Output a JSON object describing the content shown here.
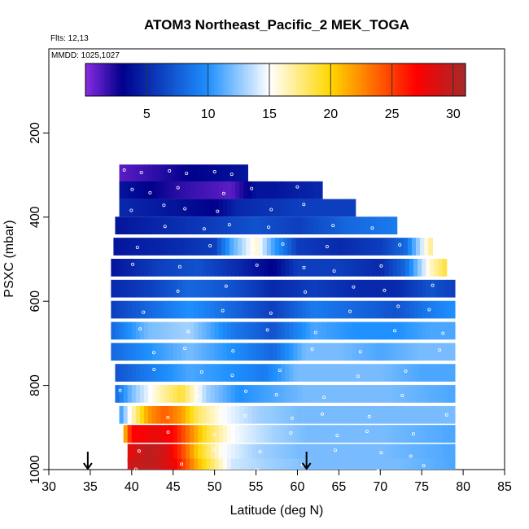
{
  "chart_data": {
    "type": "heatmap",
    "title": "ATOM3 Northeast_Pacific_2 MEK_TOGA",
    "flights_label": "Flts: 12,13",
    "dates_label": "MMDD: 1025,1027",
    "xlabel": "Latitude (deg N)",
    "ylabel": "PSXC (mbar)",
    "xlim": [
      30,
      85
    ],
    "ylim": [
      1000,
      0
    ],
    "x_ticks": [
      30,
      35,
      40,
      45,
      50,
      55,
      60,
      65,
      70,
      75,
      80,
      85
    ],
    "y_ticks": [
      200,
      400,
      600,
      800,
      1000
    ],
    "colorbar": {
      "range": [
        0,
        31
      ],
      "ticks": [
        5,
        10,
        15,
        20,
        25,
        30
      ],
      "colors": [
        "#8a2be2",
        "#00008b",
        "#1e90ff",
        "#ffffff",
        "#ffd700",
        "#ff0000",
        "#a52a2a"
      ]
    },
    "markers_latitude": [
      34.7,
      61.1
    ],
    "rows": [
      {
        "p": 296,
        "lat": [
          38.5,
          54
        ],
        "vals": [
          [
            38.5,
            1
          ],
          [
            47,
            3
          ],
          [
            54,
            4
          ]
        ]
      },
      {
        "p": 336,
        "lat": [
          38.5,
          63
        ],
        "vals": [
          [
            38.5,
            4
          ],
          [
            46,
            2
          ],
          [
            52,
            1
          ],
          [
            55,
            4
          ],
          [
            57,
            4
          ],
          [
            63,
            5
          ]
        ]
      },
      {
        "p": 378,
        "lat": [
          38.5,
          67
        ],
        "vals": [
          [
            38.5,
            5
          ],
          [
            45,
            4
          ],
          [
            50,
            3
          ],
          [
            53,
            5
          ],
          [
            60,
            6
          ],
          [
            67,
            6
          ]
        ]
      },
      {
        "p": 420,
        "lat": [
          38.0,
          72
        ],
        "vals": [
          [
            38,
            4
          ],
          [
            44,
            5
          ],
          [
            50,
            6
          ],
          [
            55,
            7
          ],
          [
            60,
            6
          ],
          [
            66,
            8
          ],
          [
            72,
            9
          ]
        ]
      },
      {
        "p": 470,
        "lat": [
          37.8,
          76
        ],
        "vals": [
          [
            37.8,
            4
          ],
          [
            45,
            5
          ],
          [
            50,
            6
          ],
          [
            52,
            11
          ],
          [
            55,
            16
          ],
          [
            57,
            11
          ],
          [
            60,
            6
          ],
          [
            65,
            5
          ],
          [
            70,
            6
          ],
          [
            73,
            8
          ],
          [
            76,
            17
          ]
        ]
      },
      {
        "p": 520,
        "lat": [
          37.5,
          78
        ],
        "vals": [
          [
            37.5,
            4
          ],
          [
            43,
            6
          ],
          [
            48,
            7
          ],
          [
            53,
            5
          ],
          [
            57,
            3
          ],
          [
            60,
            6
          ],
          [
            65,
            6
          ],
          [
            70,
            5
          ],
          [
            73,
            8
          ],
          [
            76,
            16
          ],
          [
            78,
            19
          ]
        ]
      },
      {
        "p": 570,
        "lat": [
          37.5,
          79
        ],
        "vals": [
          [
            37.5,
            5
          ],
          [
            42,
            6
          ],
          [
            47,
            8
          ],
          [
            52,
            7
          ],
          [
            57,
            5
          ],
          [
            62,
            6
          ],
          [
            67,
            5
          ],
          [
            72,
            5
          ],
          [
            76,
            7
          ],
          [
            79,
            6
          ]
        ]
      },
      {
        "p": 620,
        "lat": [
          37.5,
          79
        ],
        "vals": [
          [
            37.5,
            6
          ],
          [
            42,
            8
          ],
          [
            47,
            10
          ],
          [
            52,
            8
          ],
          [
            57,
            6
          ],
          [
            62,
            9
          ],
          [
            67,
            8
          ],
          [
            72,
            7
          ],
          [
            76,
            9
          ],
          [
            79,
            10
          ]
        ]
      },
      {
        "p": 670,
        "lat": [
          37.5,
          79
        ],
        "vals": [
          [
            37.5,
            8
          ],
          [
            42,
            12
          ],
          [
            47,
            13
          ],
          [
            52,
            9
          ],
          [
            57,
            7
          ],
          [
            62,
            11
          ],
          [
            67,
            10
          ],
          [
            72,
            10
          ],
          [
            76,
            11
          ],
          [
            79,
            11
          ]
        ]
      },
      {
        "p": 720,
        "lat": [
          37.5,
          79
        ],
        "vals": [
          [
            37.5,
            8
          ],
          [
            42,
            10
          ],
          [
            47,
            12
          ],
          [
            52,
            10
          ],
          [
            57,
            8
          ],
          [
            61,
            12
          ],
          [
            65,
            12
          ],
          [
            70,
            11
          ],
          [
            75,
            12
          ],
          [
            79,
            12
          ]
        ]
      },
      {
        "p": 770,
        "lat": [
          38,
          79
        ],
        "vals": [
          [
            38,
            7
          ],
          [
            42,
            9
          ],
          [
            47,
            11
          ],
          [
            52,
            10
          ],
          [
            56,
            9
          ],
          [
            60,
            12
          ],
          [
            65,
            12
          ],
          [
            70,
            12
          ],
          [
            75,
            11
          ],
          [
            79,
            11
          ]
        ]
      },
      {
        "p": 820,
        "lat": [
          38,
          79
        ],
        "vals": [
          [
            38,
            8
          ],
          [
            40,
            12
          ],
          [
            43,
            16
          ],
          [
            46,
            19
          ],
          [
            49,
            13
          ],
          [
            53,
            10
          ],
          [
            57,
            11
          ],
          [
            61,
            12
          ],
          [
            66,
            12
          ],
          [
            71,
            12
          ],
          [
            79,
            11
          ]
        ]
      },
      {
        "p": 870,
        "lat": [
          38.5,
          79
        ],
        "vals": [
          [
            38.5,
            10
          ],
          [
            40,
            16
          ],
          [
            42,
            22
          ],
          [
            44,
            24
          ],
          [
            46,
            22
          ],
          [
            48,
            18
          ],
          [
            51,
            15
          ],
          [
            55,
            13
          ],
          [
            60,
            12
          ],
          [
            70,
            12
          ],
          [
            79,
            12
          ]
        ]
      },
      {
        "p": 915,
        "lat": [
          39,
          79
        ],
        "vals": [
          [
            39,
            20
          ],
          [
            40,
            27
          ],
          [
            43,
            28
          ],
          [
            45,
            27
          ],
          [
            47,
            23
          ],
          [
            49,
            19
          ],
          [
            52,
            15
          ],
          [
            57,
            13
          ],
          [
            61,
            12
          ],
          [
            70,
            12
          ],
          [
            79,
            11
          ]
        ]
      },
      {
        "p": 960,
        "lat": [
          39.5,
          79
        ],
        "vals": [
          [
            39.5,
            28
          ],
          [
            42,
            30
          ],
          [
            44,
            29
          ],
          [
            46,
            25
          ],
          [
            48,
            20
          ],
          [
            51,
            15
          ],
          [
            55,
            13
          ],
          [
            60,
            12
          ],
          [
            70,
            12
          ],
          [
            79,
            11
          ]
        ]
      },
      {
        "p": 995,
        "lat": [
          39.5,
          79
        ],
        "vals": [
          [
            39.5,
            29
          ],
          [
            42,
            30
          ],
          [
            45,
            28
          ],
          [
            48,
            21
          ],
          [
            52,
            14
          ],
          [
            56,
            13
          ],
          [
            62,
            12
          ],
          [
            72,
            12
          ],
          [
            79,
            11
          ]
        ]
      }
    ]
  }
}
